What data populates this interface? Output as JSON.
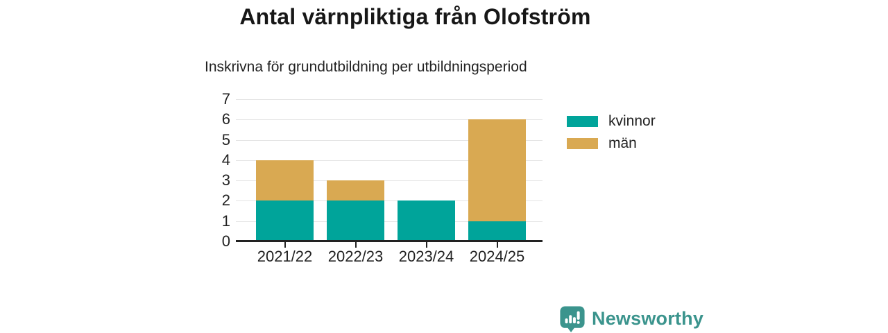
{
  "header": {
    "title": "Antal värnpliktiga från Olofström",
    "subtitle": "Inskrivna för grundutbildning per utbildningsperiod"
  },
  "chart_data": {
    "type": "bar",
    "stacked": true,
    "title": "Antal värnpliktiga från Olofström",
    "subtitle": "Inskrivna för grundutbildning per utbildningsperiod",
    "categories": [
      "2021/22",
      "2022/23",
      "2023/24",
      "2024/25"
    ],
    "series": [
      {
        "name": "kvinnor",
        "color": "#00a49a",
        "values": [
          2,
          2,
          2,
          1
        ]
      },
      {
        "name": "män",
        "color": "#d9a952",
        "values": [
          2,
          1,
          0,
          5
        ]
      }
    ],
    "totals": [
      4,
      3,
      2,
      6
    ],
    "ylim": [
      0,
      7
    ],
    "yticks": [
      0,
      1,
      2,
      3,
      4,
      5,
      6,
      7
    ],
    "xlabel": "",
    "ylabel": "",
    "grid": true,
    "legend_position": "right"
  },
  "legend": {
    "items": [
      {
        "label": "kvinnor",
        "color": "#00a49a"
      },
      {
        "label": "män",
        "color": "#d9a952"
      }
    ]
  },
  "footer": {
    "brand": "Newsworthy"
  },
  "colors": {
    "accent_teal": "#00a49a",
    "accent_gold": "#d9a952",
    "brand_teal": "#3b948d",
    "gridline": "#e4e4e4",
    "axis": "#222222",
    "title_text": "#171717",
    "label_text": "#222222"
  }
}
